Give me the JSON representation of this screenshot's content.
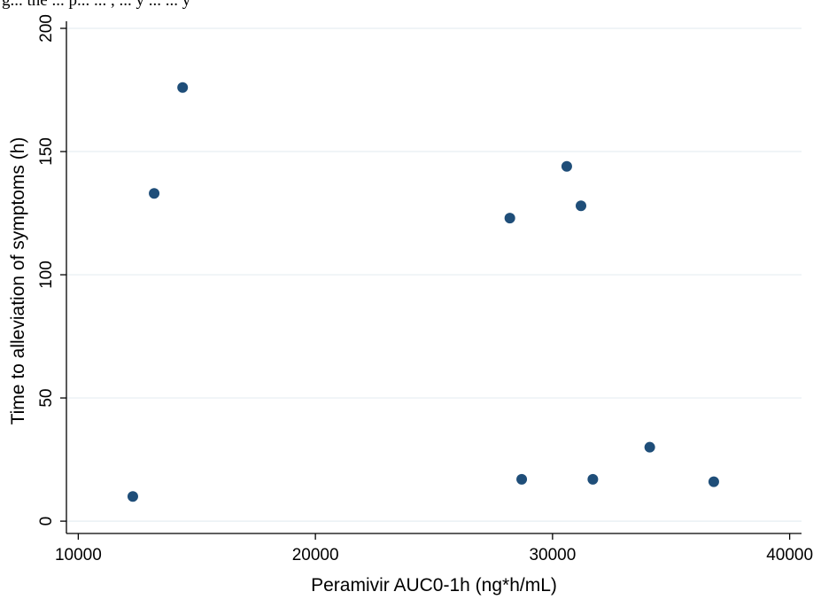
{
  "caption": "g... the ... p... ... , ... y ... ... y",
  "chart_data": {
    "type": "scatter",
    "title": "",
    "xlabel": "Peramivir AUC0-1h (ng*h/mL)",
    "ylabel": "Time to alleviation of symptoms (h)",
    "xlim": [
      9500,
      40500
    ],
    "ylim": [
      -5,
      200
    ],
    "xticks": [
      10000,
      20000,
      30000,
      40000
    ],
    "yticks": [
      0,
      50,
      100,
      150,
      200
    ],
    "grid": "horizontal",
    "marker_color": "#1f4e79",
    "points": [
      {
        "x": 12300,
        "y": 10
      },
      {
        "x": 13200,
        "y": 133
      },
      {
        "x": 14400,
        "y": 176
      },
      {
        "x": 28200,
        "y": 123
      },
      {
        "x": 28700,
        "y": 17
      },
      {
        "x": 30600,
        "y": 144
      },
      {
        "x": 31200,
        "y": 128
      },
      {
        "x": 31700,
        "y": 17
      },
      {
        "x": 34100,
        "y": 30
      },
      {
        "x": 36800,
        "y": 16
      }
    ]
  }
}
